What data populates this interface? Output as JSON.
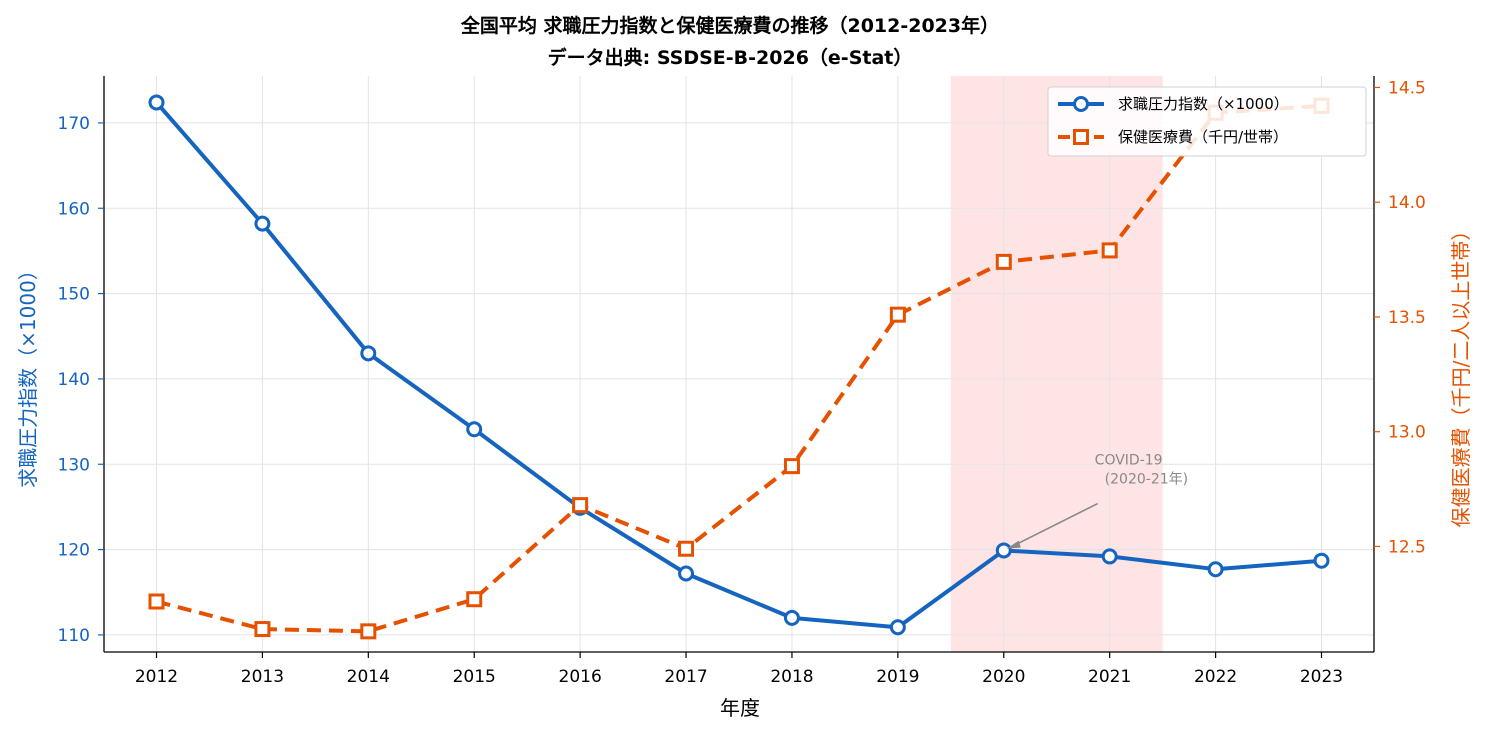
{
  "chart_data": {
    "type": "line",
    "title": "全国平均 求職圧力指数と保健医療費の推移（2012-2023年）",
    "subtitle": "データ出典: SSDSE-B-2026（e-Stat）",
    "xlabel": "年度",
    "ylabel_left": "求職圧力指数（×1000）",
    "ylabel_right": "保健医療費（千円/二人以上世帯）",
    "x": [
      2012,
      2013,
      2014,
      2015,
      2016,
      2017,
      2018,
      2019,
      2020,
      2021,
      2022,
      2023
    ],
    "x_tick_labels": [
      "2012",
      "2013",
      "2014",
      "2015",
      "2016",
      "2017",
      "2018",
      "2019",
      "2020",
      "2021",
      "2022",
      "2023"
    ],
    "ylim_left": [
      108,
      175.5
    ],
    "yticks_left": [
      110,
      120,
      130,
      140,
      150,
      160,
      170
    ],
    "ytick_labels_left": [
      "110",
      "120",
      "130",
      "140",
      "150",
      "160",
      "170"
    ],
    "ylim_right": [
      12.04,
      14.55
    ],
    "yticks_right": [
      12.5,
      13.0,
      13.5,
      14.0,
      14.5
    ],
    "ytick_labels_right": [
      "12.5",
      "13.0",
      "13.5",
      "14.0",
      "14.5"
    ],
    "grid": true,
    "legend_position": "top-right",
    "series": [
      {
        "name": "求職圧力指数（×1000）",
        "axis": "left",
        "color": "#1565c0",
        "marker": "circle",
        "linestyle": "solid",
        "values": [
          172.4,
          158.2,
          143.0,
          134.1,
          124.9,
          117.2,
          112.0,
          110.9,
          119.9,
          119.2,
          117.7,
          118.7
        ]
      },
      {
        "name": "保健医療費（千円/世帯）",
        "axis": "right",
        "color": "#e65100",
        "marker": "square",
        "linestyle": "dashed",
        "values": [
          12.26,
          12.14,
          12.13,
          12.27,
          12.68,
          12.49,
          12.85,
          13.51,
          13.74,
          13.79,
          14.39,
          14.42
        ]
      }
    ],
    "highlight_span": {
      "from": 2019.5,
      "to": 2021.5,
      "color": "#ffe4e6"
    },
    "annotation": {
      "lines": [
        "COVID-19",
        "(2020-21年)"
      ],
      "target_x": 2020,
      "target_y": 120.0,
      "text_x": 2021.0,
      "text_y": 126.8
    }
  }
}
